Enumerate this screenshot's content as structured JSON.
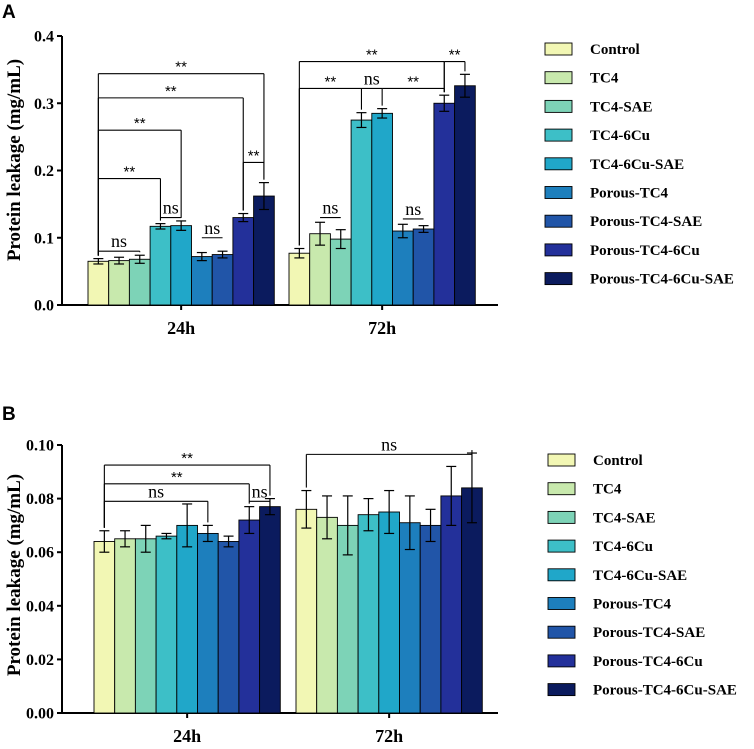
{
  "series": [
    {
      "name": "Control",
      "color": "#f2f7b4"
    },
    {
      "name": "TC4",
      "color": "#c8e9ad"
    },
    {
      "name": "TC4-SAE",
      "color": "#7dd3b7"
    },
    {
      "name": "TC4-6Cu",
      "color": "#3dbfc7"
    },
    {
      "name": "TC4-6Cu-SAE",
      "color": "#20a7c9"
    },
    {
      "name": "Porous-TC4",
      "color": "#1d7fbd"
    },
    {
      "name": "Porous-TC4-SAE",
      "color": "#2155a8"
    },
    {
      "name": "Porous-TC4-6Cu",
      "color": "#23309a"
    },
    {
      "name": "Porous-TC4-6Cu-SAE",
      "color": "#0b1b5e"
    }
  ],
  "chart_data": [
    {
      "panel": "A",
      "type": "bar",
      "ylabel": "Protein leakage (mg/mL)",
      "categories": [
        "24h",
        "72h"
      ],
      "yticks": [
        "0.0",
        "0.1",
        "0.2",
        "0.3",
        "0.4"
      ],
      "ylim": [
        0,
        0.4
      ],
      "values": [
        [
          0.065,
          0.066,
          0.068,
          0.117,
          0.118,
          0.072,
          0.075,
          0.13,
          0.162
        ],
        [
          0.077,
          0.106,
          0.098,
          0.275,
          0.285,
          0.11,
          0.113,
          0.3,
          0.326
        ]
      ],
      "errors": [
        [
          0.004,
          0.005,
          0.006,
          0.004,
          0.007,
          0.006,
          0.005,
          0.006,
          0.02
        ],
        [
          0.007,
          0.017,
          0.014,
          0.011,
          0.007,
          0.01,
          0.005,
          0.012,
          0.017
        ]
      ],
      "annotations": [
        {
          "group": 0,
          "from": 0,
          "to": 2,
          "y": 0.08,
          "label": "ns"
        },
        {
          "group": 0,
          "from": 3,
          "to": 4,
          "y": 0.13,
          "label": "ns"
        },
        {
          "group": 0,
          "from": 5,
          "to": 6,
          "y": 0.1,
          "label": "ns"
        },
        {
          "group": 0,
          "from": 7,
          "to": 8,
          "y": 0.212,
          "label": "**"
        },
        {
          "group": 0,
          "from": 0,
          "to": 3,
          "y": 0.188,
          "label": "**"
        },
        {
          "group": 0,
          "from": 0,
          "to": 4,
          "y": 0.26,
          "label": "**"
        },
        {
          "group": 0,
          "from": 0,
          "to": 7,
          "y": 0.308,
          "label": "**"
        },
        {
          "group": 0,
          "from": 0,
          "to": 8,
          "y": 0.344,
          "label": "**"
        },
        {
          "group": 1,
          "from": 1,
          "to": 2,
          "y": 0.13,
          "label": "ns"
        },
        {
          "group": 1,
          "from": 5,
          "to": 6,
          "y": 0.128,
          "label": "ns"
        },
        {
          "group": 1,
          "from": 0,
          "to": 3,
          "y": 0.322,
          "label": "**"
        },
        {
          "group": 1,
          "from": 3,
          "to": 4,
          "y": 0.322,
          "label": "ns"
        },
        {
          "group": 1,
          "from": 4,
          "to": 7,
          "y": 0.322,
          "label": "**"
        },
        {
          "group": 1,
          "from": 7,
          "to": 8,
          "y": 0.362,
          "label": "**"
        },
        {
          "group": 1,
          "from": 0,
          "to": 7,
          "y": 0.362,
          "label": "**"
        }
      ]
    },
    {
      "panel": "B",
      "type": "bar",
      "ylabel": "Protein leakage (mg/mL)",
      "categories": [
        "24h",
        "72h"
      ],
      "yticks": [
        "0.00",
        "0.02",
        "0.04",
        "0.06",
        "0.08",
        "0.10"
      ],
      "ylim": [
        0,
        0.1
      ],
      "values": [
        [
          0.064,
          0.065,
          0.065,
          0.066,
          0.07,
          0.067,
          0.064,
          0.072,
          0.077
        ],
        [
          0.076,
          0.073,
          0.07,
          0.074,
          0.075,
          0.071,
          0.07,
          0.081,
          0.084
        ]
      ],
      "errors": [
        [
          0.004,
          0.003,
          0.005,
          0.001,
          0.008,
          0.003,
          0.002,
          0.005,
          0.003
        ],
        [
          0.007,
          0.008,
          0.011,
          0.006,
          0.008,
          0.01,
          0.006,
          0.011,
          0.013
        ]
      ],
      "annotations": [
        {
          "group": 0,
          "from": 0,
          "to": 5,
          "y": 0.079,
          "label": "ns"
        },
        {
          "group": 0,
          "from": 7,
          "to": 8,
          "y": 0.079,
          "label": "ns"
        },
        {
          "group": 0,
          "from": 0,
          "to": 7,
          "y": 0.0855,
          "label": "**"
        },
        {
          "group": 0,
          "from": 0,
          "to": 8,
          "y": 0.0925,
          "label": "**"
        },
        {
          "group": 1,
          "from": 0,
          "to": 8,
          "y": 0.0965,
          "label": "ns"
        }
      ]
    }
  ]
}
